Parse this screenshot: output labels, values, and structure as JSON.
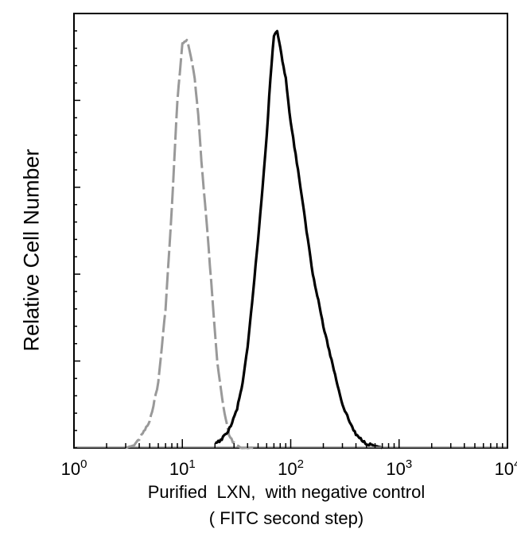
{
  "chart_data": {
    "type": "line",
    "xscale": "log",
    "xlim": [
      1,
      10000
    ],
    "ylim": [
      0,
      100
    ],
    "xticks": [
      1,
      10,
      100,
      1000,
      10000
    ],
    "xtick_labels": [
      {
        "base": "10",
        "exp": "0"
      },
      {
        "base": "10",
        "exp": "1"
      },
      {
        "base": "10",
        "exp": "2"
      },
      {
        "base": "10",
        "exp": "3"
      },
      {
        "base": "10",
        "exp": "4"
      }
    ],
    "ylabel": "Relative Cell Number",
    "xlabel_line1": "Purified  LXN,  with negative control",
    "xlabel_line2": "( FITC second step)",
    "grid": false,
    "series": [
      {
        "style": "dashed",
        "color": "#999999",
        "x": [
          3.0,
          3.5,
          4.0,
          5.0,
          6.0,
          7.0,
          8.0,
          9.0,
          10.0,
          11.0,
          12.0,
          13.0,
          14.0,
          15.0,
          17.0,
          19.0,
          21.0,
          24.0,
          27.0,
          30.0,
          35.0,
          45.0
        ],
        "y": [
          0,
          0.5,
          2,
          6,
          15,
          32,
          55,
          80,
          93,
          94,
          90,
          85,
          77,
          66,
          50,
          34,
          20,
          9,
          3,
          1,
          0,
          0
        ]
      },
      {
        "style": "solid",
        "color": "#000000",
        "x": [
          20,
          22,
          25,
          28,
          32,
          36,
          40,
          45,
          50,
          55,
          60,
          65,
          70,
          75,
          80,
          90,
          100,
          120,
          140,
          160,
          180,
          200,
          250,
          300,
          350,
          400,
          500,
          600,
          700
        ],
        "y": [
          1,
          1.5,
          3,
          5,
          9,
          15,
          23,
          36,
          48,
          60,
          72,
          85,
          95,
          96,
          92,
          85,
          75,
          62,
          50,
          40,
          34,
          28,
          18,
          10,
          6,
          3,
          1,
          0.5,
          0
        ]
      }
    ]
  }
}
